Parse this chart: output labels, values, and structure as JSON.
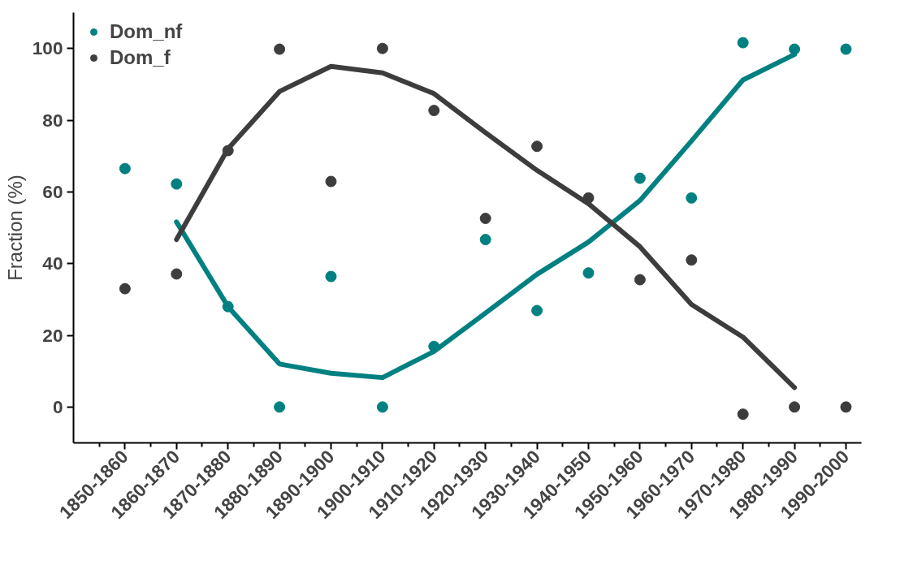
{
  "chart_data": {
    "type": "scatter",
    "ylabel": "Fraction (%)",
    "ylim": [
      -10,
      110
    ],
    "yticks": [
      0,
      20,
      40,
      60,
      80,
      100
    ],
    "categories": [
      "1850-1860",
      "1860-1870",
      "1870-1880",
      "1880-1890",
      "1890-1900",
      "1900-1910",
      "1910-1920",
      "1920-1930",
      "1930-1940",
      "1940-1950",
      "1950-1960",
      "1960-1970",
      "1970-1980",
      "1980-1990",
      "1990-2000"
    ],
    "grid": false,
    "legend": "top left",
    "marker": "circle",
    "series": [
      {
        "name": "Dom_nf",
        "color": "#008080",
        "values": [
          66.5,
          62.2,
          28,
          0,
          36.4,
          0,
          16.9,
          46.7,
          26.9,
          37.4,
          63.8,
          58.3,
          101.6,
          99.8,
          99.8
        ]
      },
      {
        "name": "Dom_f",
        "color": "#3d3d3d",
        "values": [
          33,
          37.1,
          71.5,
          99.8,
          62.9,
          100,
          82.7,
          52.6,
          72.7,
          58.3,
          35.5,
          41,
          -2,
          0,
          0
        ]
      },
      {
        "type": "line",
        "color": "#008080",
        "line_style": "solid",
        "marker": "none",
        "values": [
          null,
          51.6,
          28,
          12,
          9.4,
          8.2,
          15.5,
          26.2,
          37,
          46,
          57.6,
          74.2,
          91.2,
          98.3,
          null
        ]
      },
      {
        "type": "line",
        "color": "#3d3d3d",
        "line_style": "solid",
        "marker": "none",
        "values": [
          null,
          46.7,
          72,
          88,
          95,
          93.2,
          87.4,
          76.5,
          66,
          56.7,
          44.7,
          28.6,
          19.5,
          5.4,
          null
        ]
      }
    ]
  }
}
